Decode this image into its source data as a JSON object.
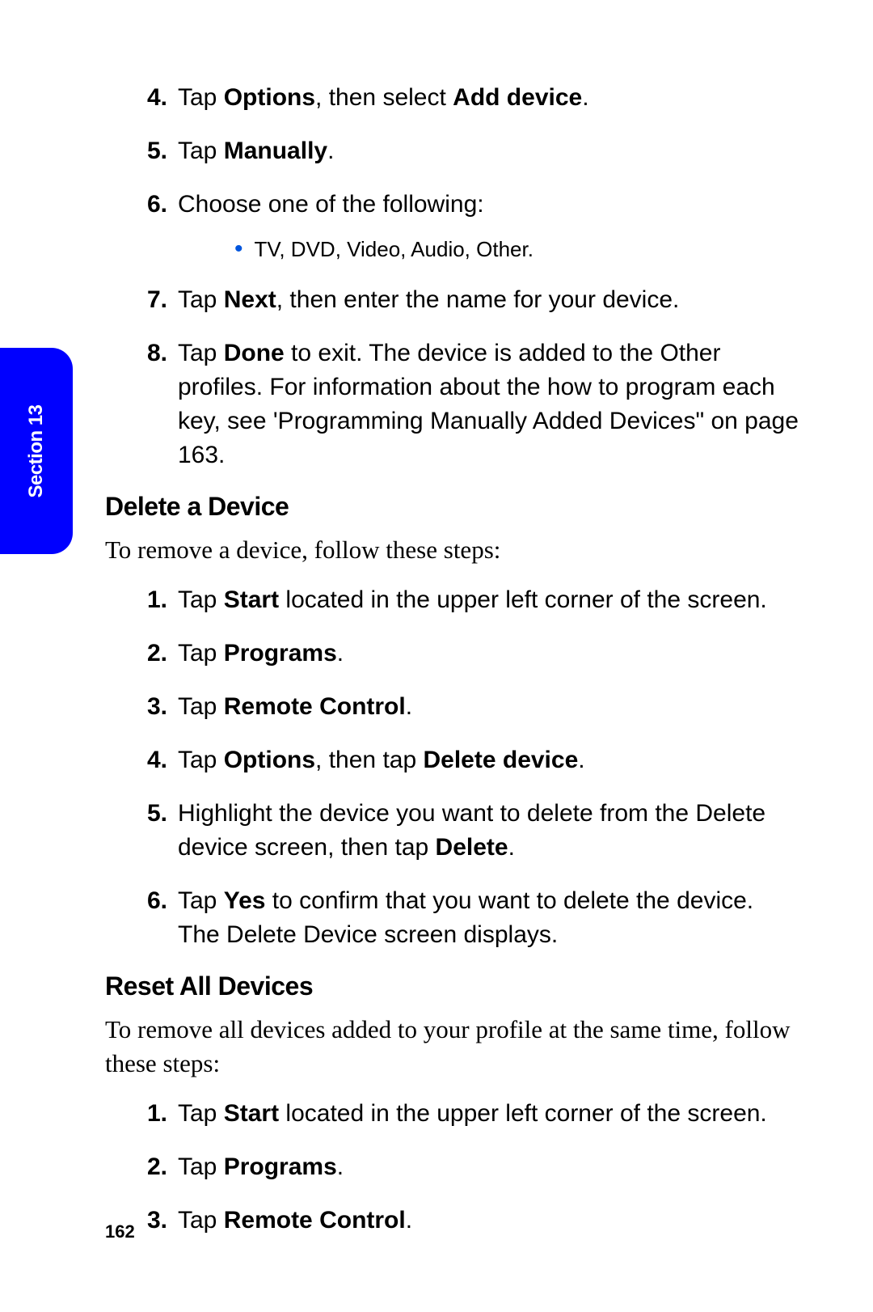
{
  "section_tab": "Section 13",
  "page_number": "162",
  "colors": {
    "tab_bg": "#0000ff",
    "tab_text": "#ffffff",
    "bullet": "#0055dd",
    "body_text": "#000000",
    "background": "#ffffff"
  },
  "add_steps": {
    "s4_num": "4.",
    "s4_a": "Tap ",
    "s4_b": "Options",
    "s4_c": ", then select ",
    "s4_d": "Add device",
    "s4_e": ".",
    "s5_num": "5.",
    "s5_a": "Tap ",
    "s5_b": "Manually",
    "s5_c": ".",
    "s6_num": "6.",
    "s6_a": "Choose one of the following:",
    "s6_bullet": "TV, DVD, Video, Audio, Other.",
    "s7_num": "7.",
    "s7_a": "Tap ",
    "s7_b": "Next",
    "s7_c": ", then enter the name for your device.",
    "s8_num": "8.",
    "s8_a": "Tap ",
    "s8_b": "Done",
    "s8_c": " to exit. The device is added to the Other profiles. For information about the how to program each key, see 'Programming Manually Added Devices\" on page 163."
  },
  "delete": {
    "heading": "Delete a Device",
    "intro": "To remove a device, follow these steps:",
    "s1_num": "1.",
    "s1_a": "Tap ",
    "s1_b": "Start",
    "s1_c": " located in the upper left corner of the screen.",
    "s2_num": "2.",
    "s2_a": "Tap ",
    "s2_b": "Programs",
    "s2_c": ".",
    "s3_num": "3.",
    "s3_a": "Tap ",
    "s3_b": "Remote Control",
    "s3_c": ".",
    "s4_num": "4.",
    "s4_a": "Tap ",
    "s4_b": "Options",
    "s4_c": ", then tap ",
    "s4_d": "Delete device",
    "s4_e": ".",
    "s5_num": "5.",
    "s5_a": "Highlight the device you want to delete from the Delete device screen, then tap ",
    "s5_b": "Delete",
    "s5_c": ".",
    "s6_num": "6.",
    "s6_a": "Tap ",
    "s6_b": "Yes",
    "s6_c": " to confirm that you want to delete the device. The Delete Device screen displays."
  },
  "reset": {
    "heading": "Reset All Devices",
    "intro": "To remove all devices added to your profile at the same time, follow these steps:",
    "s1_num": "1.",
    "s1_a": "Tap ",
    "s1_b": "Start",
    "s1_c": " located in the upper left corner of the screen.",
    "s2_num": "2.",
    "s2_a": "Tap ",
    "s2_b": "Programs",
    "s2_c": ".",
    "s3_num": "3.",
    "s3_a": "Tap ",
    "s3_b": "Remote Control",
    "s3_c": "."
  }
}
